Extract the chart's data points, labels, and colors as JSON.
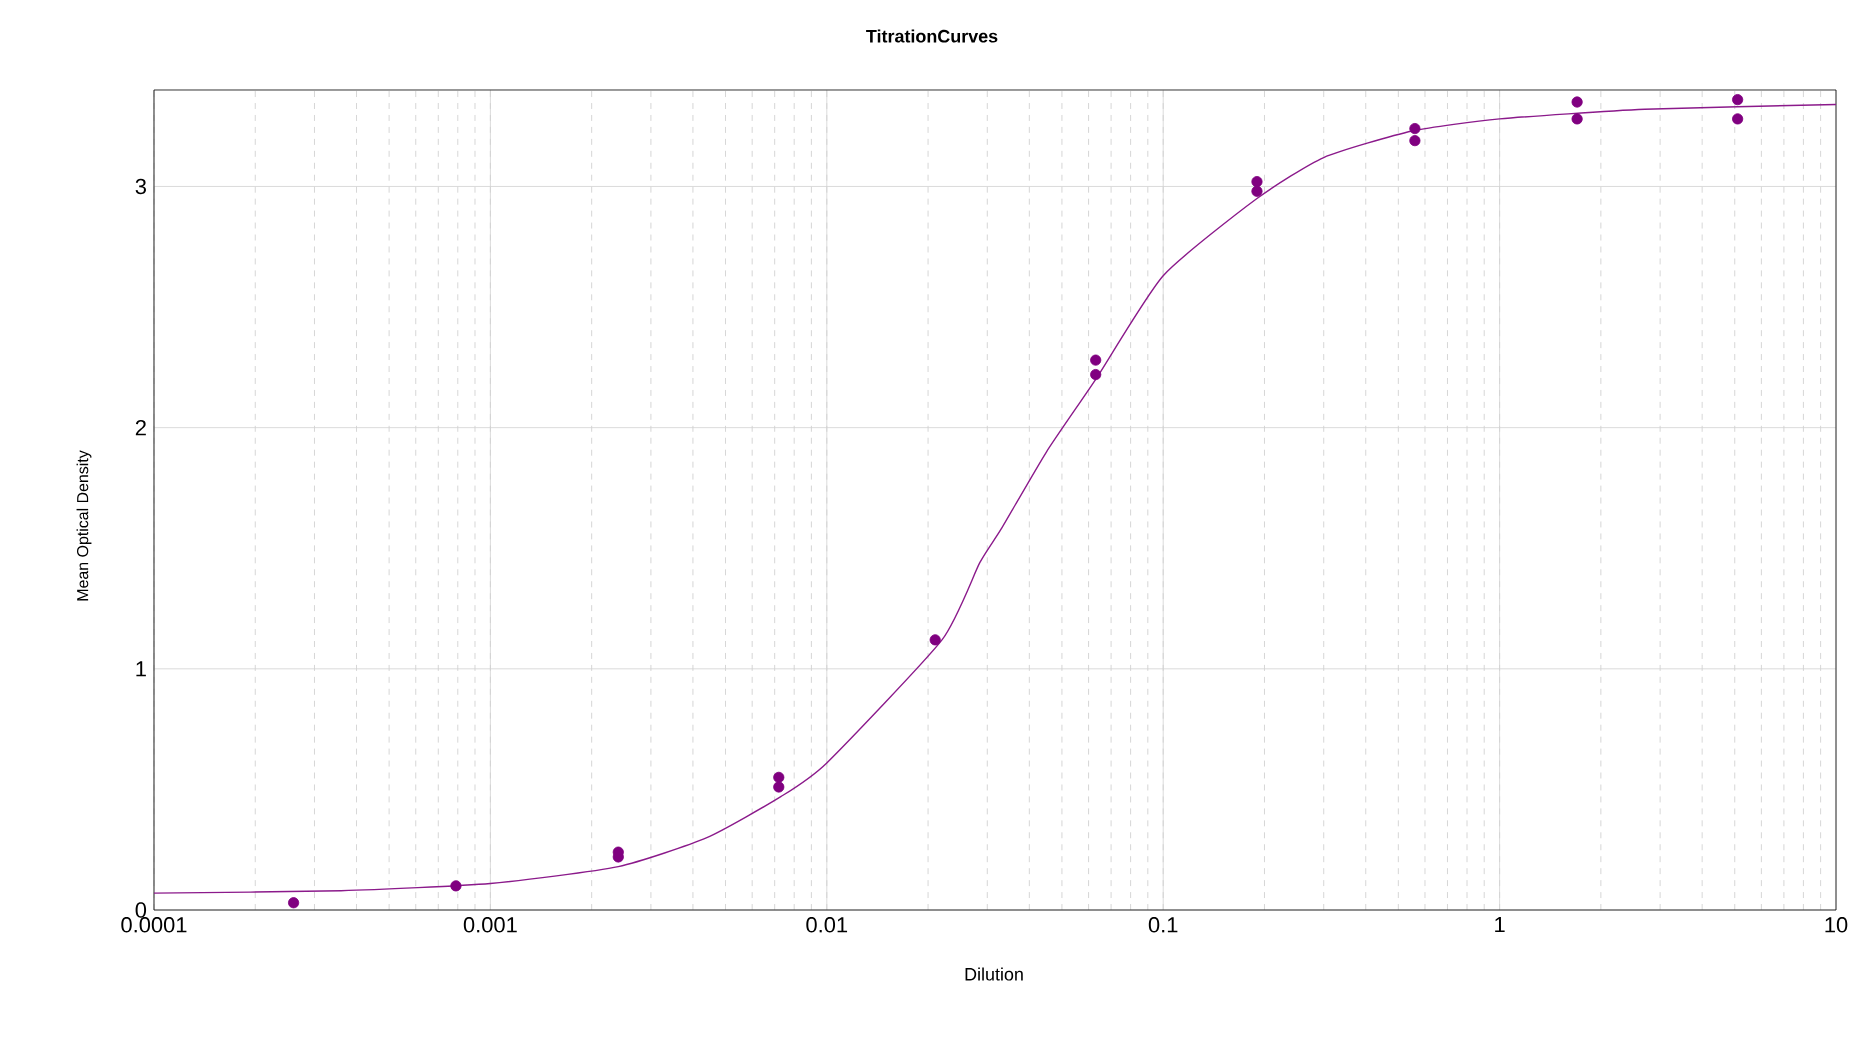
{
  "chart_data": {
    "type": "scatter",
    "title": "TitrationCurves",
    "xlabel": "Dilution",
    "ylabel": "Mean Optical Density",
    "log": "x",
    "grid": true,
    "xlim": [
      0.0001,
      10
    ],
    "xticks": [
      {
        "value": 0.0001,
        "label": "0.0001"
      },
      {
        "value": 0.001,
        "label": "0.001"
      },
      {
        "value": 0.01,
        "label": "0.01"
      },
      {
        "value": 0.1,
        "label": "0.1"
      },
      1,
      10
    ],
    "ylim": [
      0,
      3.4
    ],
    "yticks": [
      0,
      1,
      2,
      3
    ],
    "series": [
      {
        "marker": "circle",
        "color": "#800080",
        "x": [
          0.00026,
          0.00079,
          0.0024,
          0.0024,
          0.0072,
          0.0072,
          0.021,
          0.063,
          0.063,
          0.19,
          0.19,
          0.56,
          0.56,
          1.7,
          1.7,
          5.1,
          5.1
        ],
        "values": [
          0.03,
          0.1,
          0.22,
          0.24,
          0.51,
          0.55,
          1.12,
          2.22,
          2.28,
          2.98,
          3.02,
          3.19,
          3.24,
          3.28,
          3.35,
          3.28,
          3.36
        ]
      },
      {
        "type": "line",
        "marker": "none",
        "color": "#8b1a8b",
        "x": [
          0.0001,
          0.00036,
          0.001,
          0.0024,
          0.0044,
          0.0073,
          0.01,
          0.022,
          0.0285,
          0.033,
          0.045,
          0.063,
          0.1,
          0.19,
          0.3,
          0.55,
          1,
          2.7,
          10
        ],
        "values": [
          0.07,
          0.08,
          0.11,
          0.18,
          0.3,
          0.47,
          0.61,
          1.12,
          1.44,
          1.58,
          1.9,
          2.2,
          2.63,
          2.95,
          3.12,
          3.23,
          3.28,
          3.32,
          3.34
        ]
      }
    ]
  }
}
